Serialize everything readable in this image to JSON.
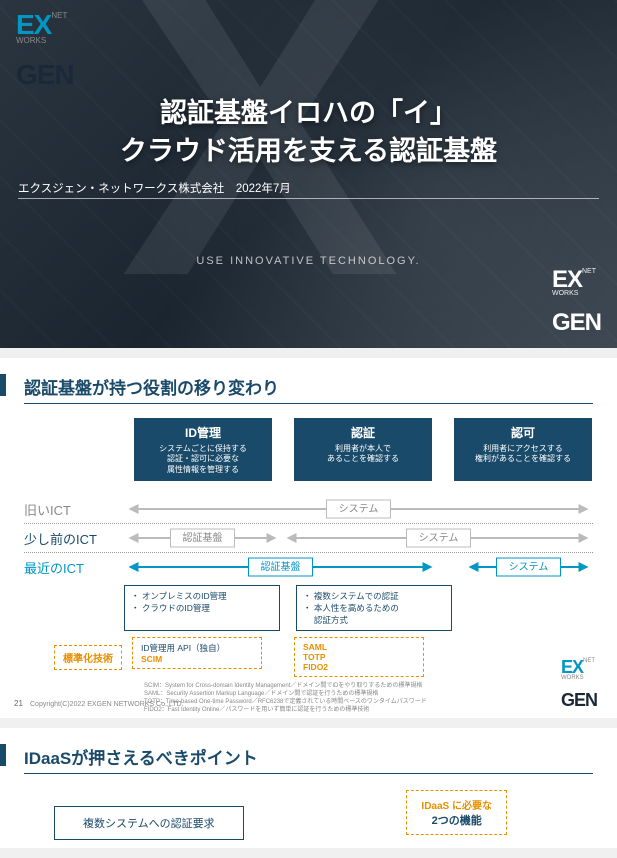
{
  "colors": {
    "brand_blue": "#0097c4",
    "brand_dark": "#1a2838",
    "accent_navy": "#1a4a6a",
    "accent_teal": "#0097c4",
    "accent_orange": "#e89000",
    "gray": "#888888"
  },
  "logo": {
    "ex": "EX",
    "gen": "GEN",
    "net": "NET\nWORKS"
  },
  "slide1": {
    "title_line1": "認証基盤イロハの「イ」",
    "title_line2": "クラウド活用を支える認証基盤",
    "company": "エクスジェン・ネットワークス株式会社",
    "date": "2022年7月",
    "tagline": "USE INNOVATIVE TECHNOLOGY."
  },
  "slide2": {
    "heading": "認証基盤が持つ役割の移り変わり",
    "columns": [
      {
        "title": "ID管理",
        "desc": "システムごとに保持する\n認証・認可に必要な\n属性情報を管理する"
      },
      {
        "title": "認証",
        "desc": "利用者が本人で\nあることを確認する"
      },
      {
        "title": "認可",
        "desc": "利用者にアクセスする\n権利があることを確認する"
      }
    ],
    "rows": [
      {
        "label": "旧いICT",
        "label_color": "#888888",
        "segments": [
          {
            "text": "システム",
            "x": 0.5,
            "w": 1.0,
            "color": "#bbbbbb",
            "arrow": "both"
          }
        ]
      },
      {
        "label": "少し前のICT",
        "label_color": "#1a4a6a",
        "segments": [
          {
            "text": "認証基盤",
            "x": 0.16,
            "w": 0.28,
            "color": "#bbbbbb",
            "arrow": "both"
          },
          {
            "text": "システム",
            "x": 0.67,
            "w": 0.62,
            "color": "#bbbbbb",
            "arrow": "both"
          }
        ]
      },
      {
        "label": "最近のICT",
        "label_color": "#0097c4",
        "segments": [
          {
            "text": "認証基盤",
            "x": 0.33,
            "w": 0.62,
            "color": "#0097c4",
            "arrow": "both"
          },
          {
            "text": "システム",
            "x": 0.86,
            "w": 0.24,
            "color": "#0097c4",
            "arrow": "both"
          }
        ]
      }
    ],
    "below_left": "・ オンプレミスのID管理\n・ クラウドのID管理",
    "below_right": "・ 複数システムでの認証\n・ 本人性を高めるための\n　 認証方式",
    "std_label": "標準化技術",
    "std_left_top": "ID管理用 API（独自）",
    "std_left_bottom": "SCIM",
    "std_right": "SAML\nTOTP\nFIDO2",
    "glossary": "SCIM：System for Cross-domain Identity Management／ドメイン間でIDをやり取りするための標準規格\nSAML：Security Assertion Markup Language／ドメイン間で認証を行うための標準規格\nTOTP：Time-based One-time Password／RFC6238で定義されている時間ベースのワンタイムパスワード\nFIDO2：Fast Identity Online／パスワードを用いず簡単に認証を行うための標準技術",
    "page_no": "21",
    "copyright": "Copyright(C)2022 EXGEN NETWORKS Co.,LTD."
  },
  "slide3": {
    "heading": "IDaaSが押さえるべきポイント",
    "left_box": "複数システムへの認証要求",
    "right_box_top": "IDaaS に必要な",
    "right_box_bottom": "2つの機能"
  }
}
